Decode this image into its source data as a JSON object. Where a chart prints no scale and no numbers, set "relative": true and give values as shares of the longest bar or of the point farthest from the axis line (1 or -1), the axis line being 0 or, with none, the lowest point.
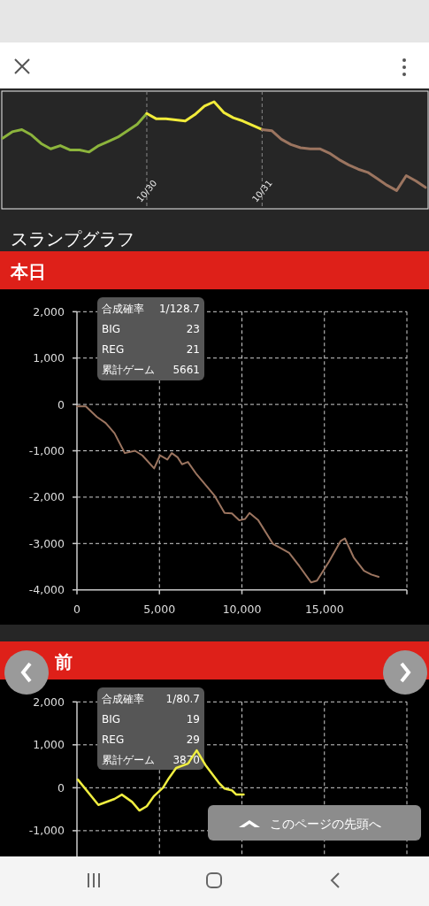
{
  "chart_data": [
    {
      "type": "line",
      "relative": true,
      "grid": "x",
      "categories": [
        null,
        null,
        null,
        null,
        null,
        null,
        null,
        null,
        null,
        null,
        null,
        null,
        null,
        null,
        null,
        "10/30",
        null,
        null,
        null,
        null,
        null,
        null,
        null,
        null,
        null,
        null,
        null,
        "10/31",
        null,
        null,
        null,
        null,
        null,
        null,
        null,
        null,
        null,
        null,
        null,
        null,
        null,
        null,
        null,
        null,
        null
      ],
      "series": [
        {
          "color": "#8cb43c",
          "values": [
            0.66,
            0.72,
            0.74,
            0.69,
            0.61,
            0.56,
            0.59,
            0.55,
            0.55,
            0.53,
            0.59,
            0.63,
            0.67,
            0.73,
            0.79,
            0.89,
            null,
            null,
            null,
            null,
            null,
            null,
            null,
            null,
            null,
            null,
            null,
            null,
            null,
            null,
            null,
            null,
            null,
            null,
            null,
            null,
            null,
            null,
            null,
            null,
            null,
            null,
            null,
            null,
            null
          ]
        },
        {
          "color": "#f2ec3a",
          "values": [
            null,
            null,
            null,
            null,
            null,
            null,
            null,
            null,
            null,
            null,
            null,
            null,
            null,
            null,
            null,
            0.89,
            0.84,
            0.84,
            0.83,
            0.82,
            0.88,
            0.96,
            1,
            0.9,
            0.85,
            0.82,
            0.78,
            0.74,
            null,
            null,
            null,
            null,
            null,
            null,
            null,
            null,
            null,
            null,
            null,
            null,
            null,
            null,
            null,
            null,
            null
          ]
        },
        {
          "color": "#9c7560",
          "values": [
            null,
            null,
            null,
            null,
            null,
            null,
            null,
            null,
            null,
            null,
            null,
            null,
            null,
            null,
            null,
            null,
            null,
            null,
            null,
            null,
            null,
            null,
            null,
            null,
            null,
            null,
            null,
            0.74,
            0.73,
            0.65,
            0.6,
            0.57,
            0.56,
            0.56,
            0.52,
            0.46,
            0.41,
            0.37,
            0.34,
            0.28,
            0.22,
            0.17,
            0.31,
            0.26,
            0.2
          ]
        }
      ]
    },
    {
      "type": "line",
      "title": "スランプグラフ",
      "subtitle": "本日",
      "xlim": [
        0,
        20000
      ],
      "ylim": [
        -4000,
        2000
      ],
      "xticks": [
        0,
        {
          "value": 5000,
          "label": "5,000"
        },
        {
          "value": 10000,
          "label": "10,000"
        },
        {
          "value": 15000,
          "label": "15,000"
        },
        {
          "value": 20000,
          "label": null
        }
      ],
      "yticks": [
        {
          "value": -4000,
          "label": "-4,000"
        },
        {
          "value": -3000,
          "label": "-3,000"
        },
        {
          "value": -2000,
          "label": "-2,000"
        },
        {
          "value": -1000,
          "label": "-1,000"
        },
        0,
        {
          "value": 1000,
          "label": "1,000"
        },
        {
          "value": 2000,
          "label": "2,000"
        }
      ],
      "grid": true,
      "annotations": [
        "合成確率",
        "1/128.7",
        "BIG",
        "23",
        "REG",
        "21",
        "累計ゲーム",
        "5661"
      ],
      "series": [
        {
          "color": "#9c7560",
          "x": [
            0,
            534,
            1210,
            1743,
            2277,
            2900,
            3522,
            3967,
            4679,
            5034,
            5479,
            5746,
            6102,
            6369,
            6725,
            7258,
            8326,
            8948,
            9393,
            9838,
            10194,
            10461,
            10994,
            11884,
            12240,
            12862,
            13485,
            14197,
            14552,
            15264,
            15976,
            16242,
            16776,
            17399,
            17844,
            18288
          ],
          "values": [
            -40,
            -40,
            -270,
            -400,
            -620,
            -1050,
            -1000,
            -1100,
            -1380,
            -1100,
            -1190,
            -1050,
            -1140,
            -1290,
            -1240,
            -1510,
            -1960,
            -2340,
            -2350,
            -2500,
            -2470,
            -2340,
            -2500,
            -3010,
            -3080,
            -3200,
            -3490,
            -3840,
            -3800,
            -3400,
            -2950,
            -2890,
            -3300,
            -3590,
            -3670,
            -3720
          ]
        }
      ]
    },
    {
      "type": "line",
      "title": "前",
      "xlim": [
        0,
        20000
      ],
      "ylim": [
        -1600,
        2000
      ],
      "tick_labels": "y",
      "xticks": [
        0,
        5000,
        10000,
        15000,
        20000
      ],
      "yticks": [
        {
          "value": -1000,
          "label": "-1,000"
        },
        0,
        {
          "value": 1000,
          "label": "1,000"
        },
        {
          "value": 2000,
          "label": "2,000"
        }
      ],
      "grid": true,
      "annotations": [
        "合成確率",
        "1/80.7",
        "BIG",
        "19",
        "REG",
        "29",
        "累計ゲーム",
        "3870",
        "このページの先頭へ"
      ],
      "series": [
        {
          "color": "#f0ee40",
          "x": [
            53,
            1299,
            2277,
            2722,
            3344,
            3789,
            4234,
            4679,
            5212,
            5568,
            6013,
            6725,
            7258,
            7791,
            8592,
            8948,
            9393,
            9660,
            10105
          ],
          "values": [
            190,
            -400,
            -260,
            -160,
            -330,
            -530,
            -430,
            -190,
            0,
            220,
            460,
            560,
            870,
            530,
            120,
            -20,
            -60,
            -160,
            -160
          ]
        }
      ]
    }
  ]
}
